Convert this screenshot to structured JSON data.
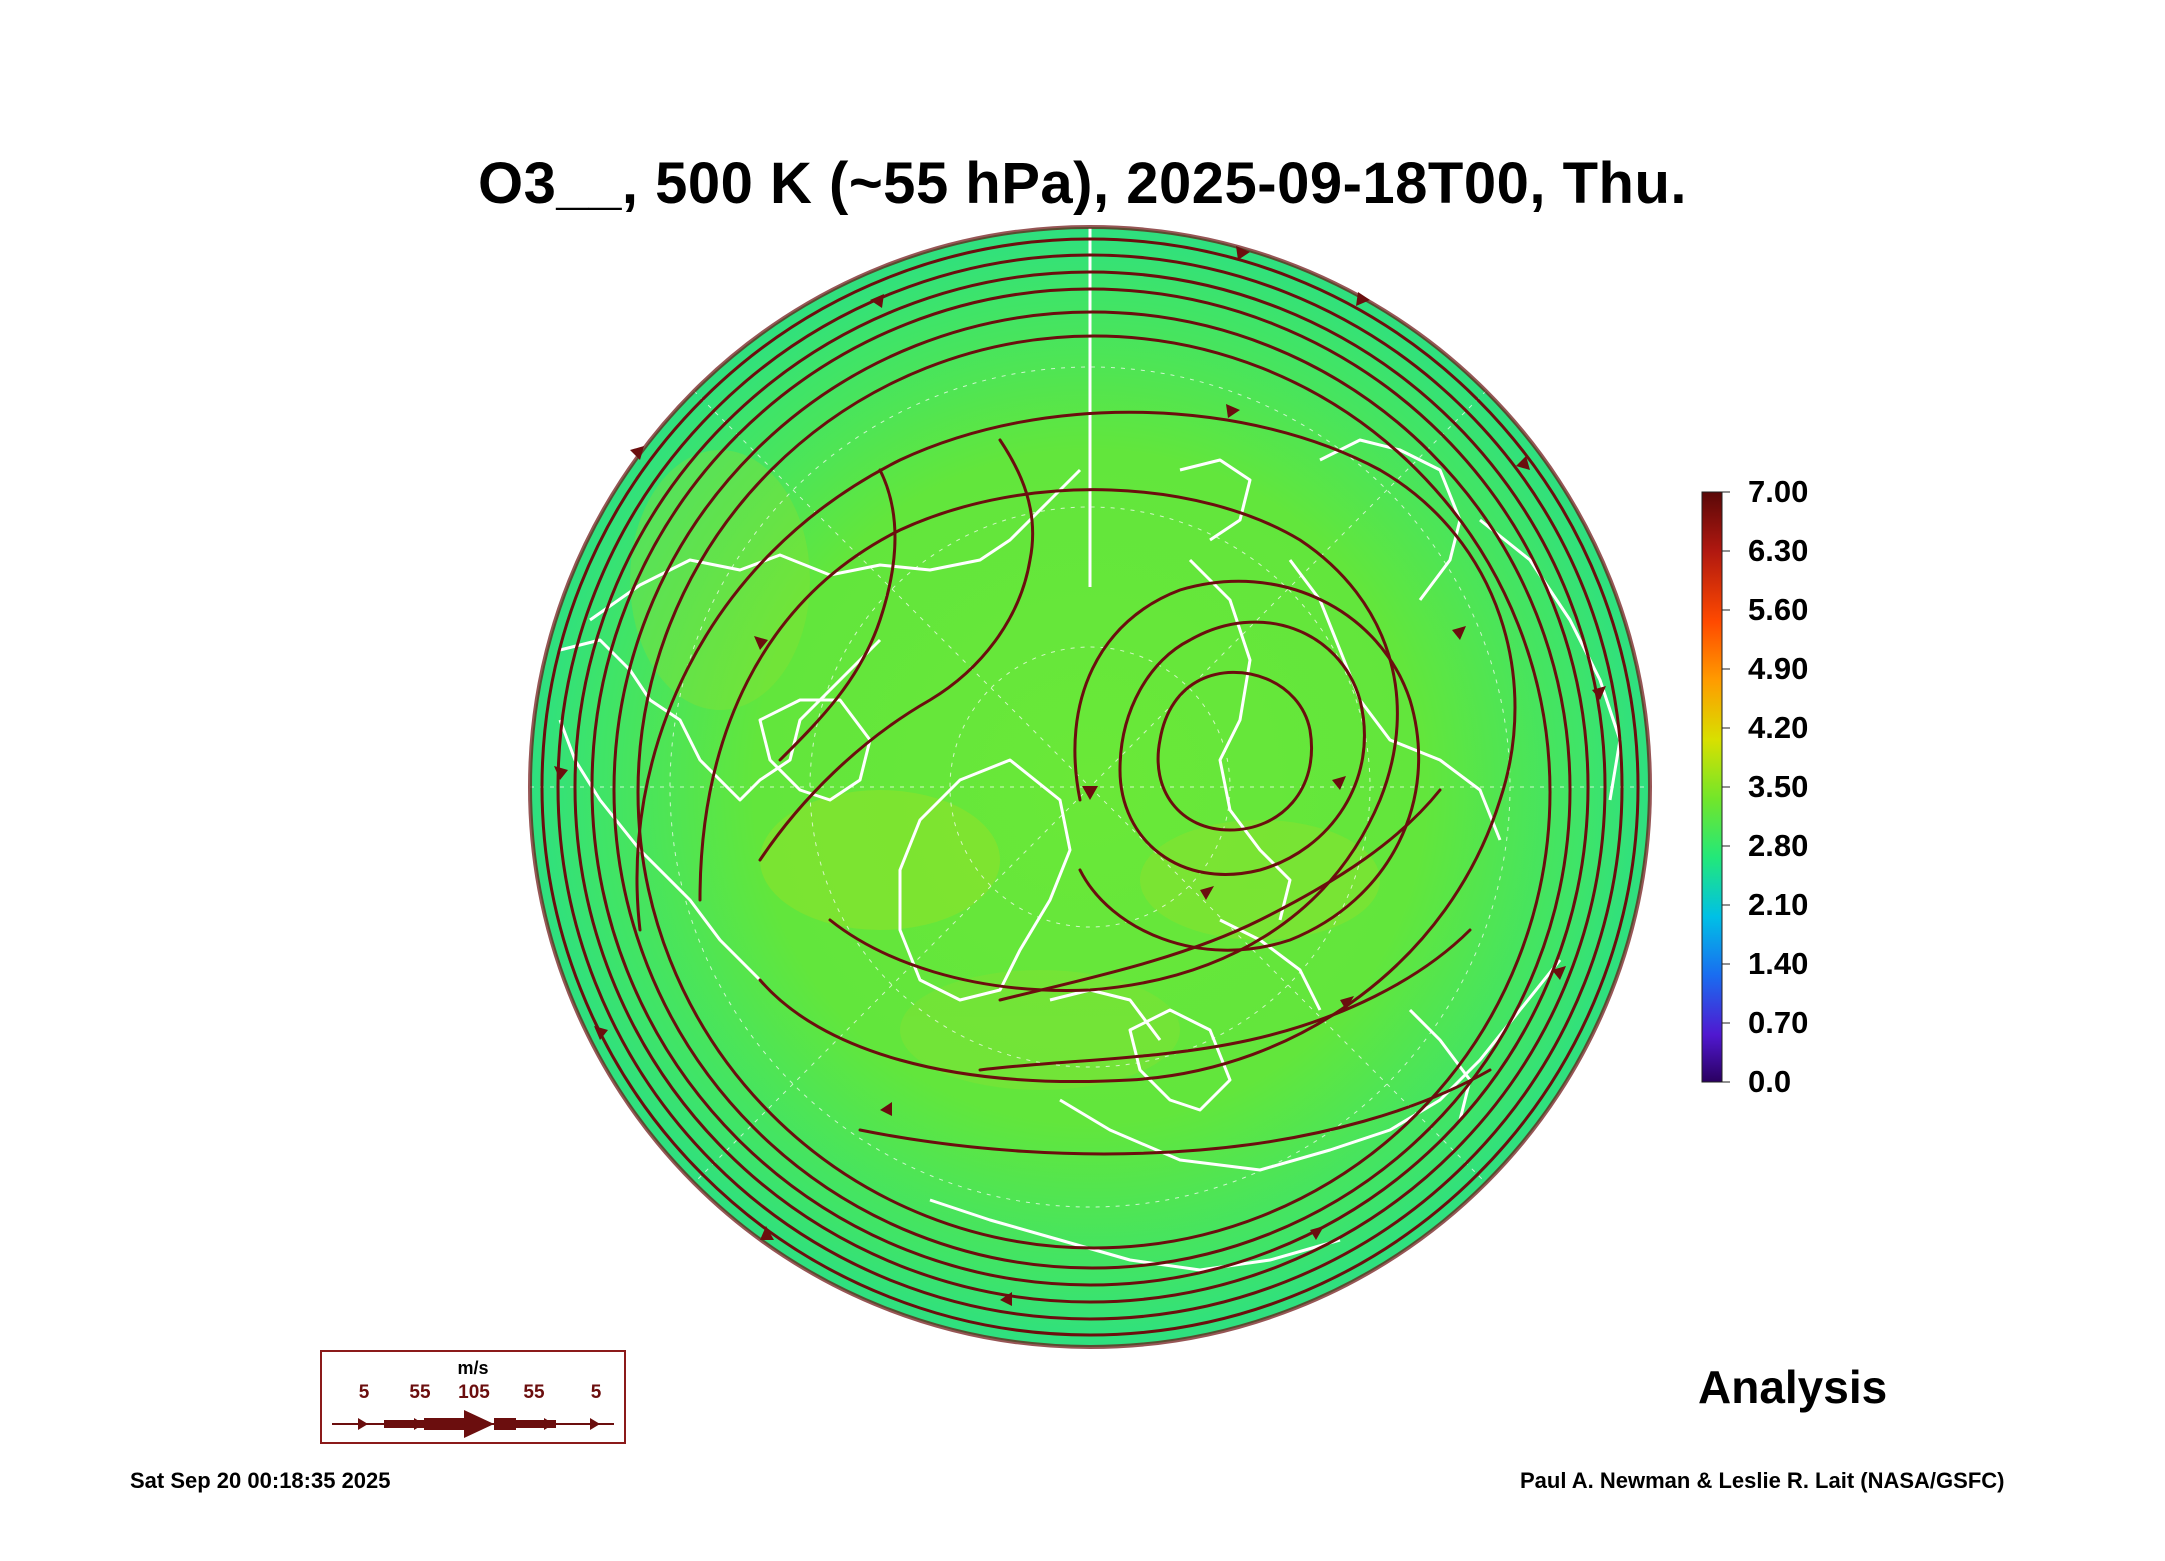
{
  "title": "O3__, 500 K (~55 hPa), 2025-09-18T00, Thu.",
  "colorbar": {
    "labels": [
      "7.00",
      "6.30",
      "5.60",
      "4.90",
      "4.20",
      "3.50",
      "2.80",
      "2.10",
      "1.40",
      "0.70",
      "0.0"
    ],
    "colors": [
      "#6b0a0a",
      "#c21a12",
      "#ff4a00",
      "#ff9a00",
      "#d4e000",
      "#66e62a",
      "#1ee87a",
      "#00c4e0",
      "#1a6cf0",
      "#4a1ad0",
      "#2a0060"
    ]
  },
  "wind_legend": {
    "unit": "m/s",
    "ticks": [
      "5",
      "55",
      "105",
      "55",
      "5"
    ]
  },
  "label_analysis": "Analysis",
  "timestamp": "Sat Sep 20 00:18:35 2025",
  "credit": "Paul A. Newman & Leslie R. Lait (NASA/GSFC)",
  "map": {
    "projection": "polar-stereographic-north",
    "field_color": "#5fe63a",
    "coastline_color": "#ffffff",
    "streamline_color": "#6b0e0e"
  }
}
